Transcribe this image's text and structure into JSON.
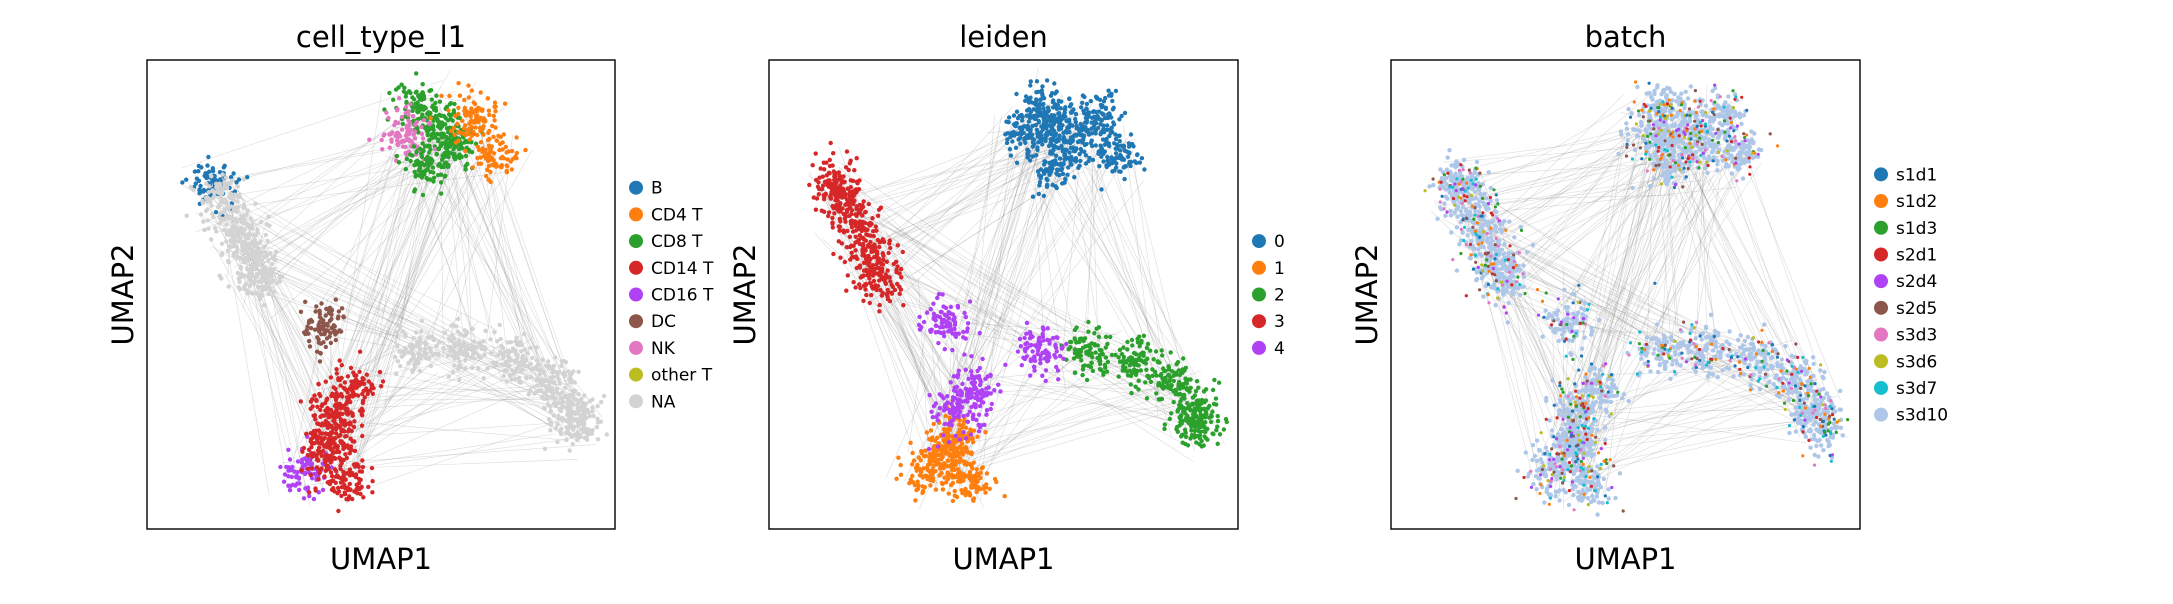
{
  "chart_data": [
    {
      "type": "scatter",
      "title": "cell_type_l1",
      "xlabel": "UMAP1",
      "ylabel": "UMAP2",
      "xticks": [],
      "yticks": [],
      "grid": false,
      "legend_placement": "right, outside",
      "edges": "gray neighbor-graph lines between cell clusters",
      "series": [
        {
          "name": "B",
          "color": "#1f77b4"
        },
        {
          "name": "CD4 T",
          "color": "#ff7f0e"
        },
        {
          "name": "CD8 T",
          "color": "#2ca02c"
        },
        {
          "name": "CD14 T",
          "color": "#d62728"
        },
        {
          "name": "CD16 T",
          "color": "#b042f5"
        },
        {
          "name": "DC",
          "color": "#8c564b"
        },
        {
          "name": "NK",
          "color": "#e377c2"
        },
        {
          "name": "other T",
          "color": "#bcbd22"
        },
        {
          "name": "NA",
          "color": "#d3d3d3"
        }
      ]
    },
    {
      "type": "scatter",
      "title": "leiden",
      "xlabel": "UMAP1",
      "ylabel": "UMAP2",
      "xticks": [],
      "yticks": [],
      "grid": false,
      "legend_placement": "right, outside",
      "edges": "gray neighbor-graph lines between cell clusters",
      "series": [
        {
          "name": "0",
          "color": "#1f77b4"
        },
        {
          "name": "1",
          "color": "#ff7f0e"
        },
        {
          "name": "2",
          "color": "#2ca02c"
        },
        {
          "name": "3",
          "color": "#d62728"
        },
        {
          "name": "4",
          "color": "#b042f5"
        }
      ]
    },
    {
      "type": "scatter",
      "title": "batch",
      "xlabel": "UMAP1",
      "ylabel": "UMAP2",
      "xticks": [],
      "yticks": [],
      "grid": false,
      "legend_placement": "right, outside",
      "edges": "gray neighbor-graph lines between cell clusters",
      "series": [
        {
          "name": "s1d1",
          "color": "#1f77b4"
        },
        {
          "name": "s1d2",
          "color": "#ff7f0e"
        },
        {
          "name": "s1d3",
          "color": "#2ca02c"
        },
        {
          "name": "s2d1",
          "color": "#d62728"
        },
        {
          "name": "s2d4",
          "color": "#b042f5"
        },
        {
          "name": "s2d5",
          "color": "#8c564b"
        },
        {
          "name": "s3d3",
          "color": "#e377c2"
        },
        {
          "name": "s3d6",
          "color": "#bcbd22"
        },
        {
          "name": "s3d7",
          "color": "#17becf"
        },
        {
          "name": "s3d10",
          "color": "#aec7e8"
        }
      ]
    }
  ]
}
